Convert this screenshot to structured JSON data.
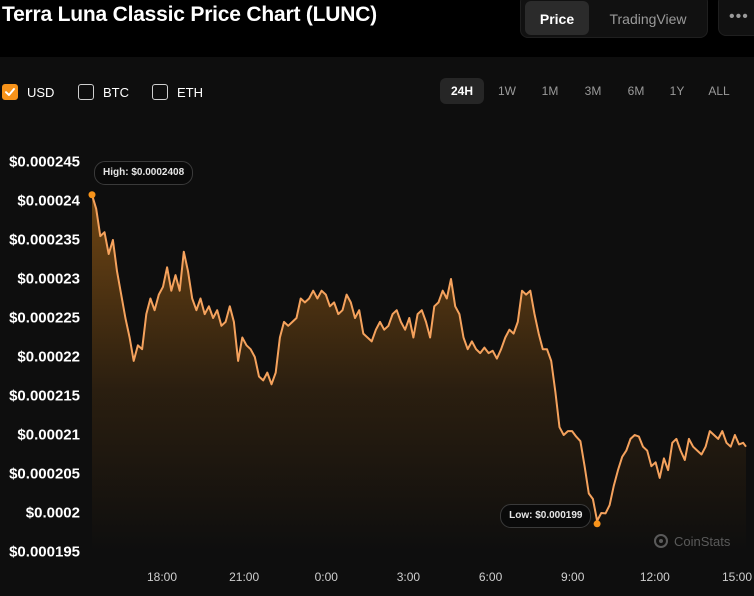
{
  "header": {
    "title": "Terra Luna Classic Price Chart (LUNC)",
    "view_tabs": [
      {
        "label": "Price",
        "active": true
      },
      {
        "label": "TradingView",
        "active": false
      }
    ],
    "more_label": "•••"
  },
  "currencies": [
    {
      "label": "USD",
      "checked": true
    },
    {
      "label": "BTC",
      "checked": false
    },
    {
      "label": "ETH",
      "checked": false
    }
  ],
  "ranges": [
    {
      "label": "24H",
      "active": true
    },
    {
      "label": "1W",
      "active": false
    },
    {
      "label": "1M",
      "active": false
    },
    {
      "label": "3M",
      "active": false
    },
    {
      "label": "6M",
      "active": false
    },
    {
      "label": "1Y",
      "active": false
    },
    {
      "label": "ALL",
      "active": false
    }
  ],
  "colors": {
    "accent": "#f7931a",
    "line": "#f5a25d"
  },
  "chart_data": {
    "type": "area",
    "title": "",
    "xlabel": "",
    "ylabel": "",
    "grid": false,
    "ylim": [
      0.0001945,
      0.000247
    ],
    "y_ticks": [
      {
        "value": 0.000245,
        "label": "$0.000245"
      },
      {
        "value": 0.00024,
        "label": "$0.00024"
      },
      {
        "value": 0.000235,
        "label": "$0.000235"
      },
      {
        "value": 0.00023,
        "label": "$0.00023"
      },
      {
        "value": 0.000225,
        "label": "$0.000225"
      },
      {
        "value": 0.00022,
        "label": "$0.00022"
      },
      {
        "value": 0.000215,
        "label": "$0.000215"
      },
      {
        "value": 0.00021,
        "label": "$0.00021"
      },
      {
        "value": 0.000205,
        "label": "$0.000205"
      },
      {
        "value": 0.0002,
        "label": "$0.0002"
      },
      {
        "value": 0.000195,
        "label": "$0.000195"
      }
    ],
    "xlim": [
      15.7,
      39.2
    ],
    "x_ticks": [
      {
        "value": 18,
        "label": "18:00"
      },
      {
        "value": 21,
        "label": "21:00"
      },
      {
        "value": 24,
        "label": "0:00"
      },
      {
        "value": 27,
        "label": "3:00"
      },
      {
        "value": 30,
        "label": "6:00"
      },
      {
        "value": 33,
        "label": "9:00"
      },
      {
        "value": 36,
        "label": "12:00"
      },
      {
        "value": 39,
        "label": "15:00"
      }
    ],
    "series": [
      {
        "values": [
          [
            15.7,
            0.0002408
          ],
          [
            15.85,
            0.000239
          ],
          [
            16.0,
            0.0002355
          ],
          [
            16.15,
            0.000236
          ],
          [
            16.3,
            0.0002332
          ],
          [
            16.45,
            0.000235
          ],
          [
            16.6,
            0.000231
          ],
          [
            16.75,
            0.000228
          ],
          [
            16.9,
            0.000225
          ],
          [
            17.05,
            0.0002225
          ],
          [
            17.2,
            0.0002195
          ],
          [
            17.35,
            0.0002215
          ],
          [
            17.5,
            0.000221
          ],
          [
            17.65,
            0.0002255
          ],
          [
            17.8,
            0.0002275
          ],
          [
            17.95,
            0.000226
          ],
          [
            18.1,
            0.000228
          ],
          [
            18.25,
            0.000229
          ],
          [
            18.4,
            0.0002315
          ],
          [
            18.55,
            0.0002285
          ],
          [
            18.7,
            0.0002305
          ],
          [
            18.85,
            0.0002285
          ],
          [
            19.0,
            0.0002335
          ],
          [
            19.15,
            0.000231
          ],
          [
            19.3,
            0.0002275
          ],
          [
            19.45,
            0.000226
          ],
          [
            19.6,
            0.0002275
          ],
          [
            19.75,
            0.0002255
          ],
          [
            19.9,
            0.0002265
          ],
          [
            20.05,
            0.000225
          ],
          [
            20.2,
            0.000226
          ],
          [
            20.35,
            0.000224
          ],
          [
            20.5,
            0.0002245
          ],
          [
            20.65,
            0.0002265
          ],
          [
            20.8,
            0.0002245
          ],
          [
            20.95,
            0.0002195
          ],
          [
            21.1,
            0.0002225
          ],
          [
            21.25,
            0.0002215
          ],
          [
            21.4,
            0.000221
          ],
          [
            21.55,
            0.00022
          ],
          [
            21.7,
            0.0002175
          ],
          [
            21.85,
            0.000217
          ],
          [
            22.0,
            0.000218
          ],
          [
            22.15,
            0.0002165
          ],
          [
            22.3,
            0.000218
          ],
          [
            22.45,
            0.0002225
          ],
          [
            22.6,
            0.0002245
          ],
          [
            22.75,
            0.000224
          ],
          [
            22.9,
            0.0002245
          ],
          [
            23.05,
            0.000225
          ],
          [
            23.2,
            0.0002275
          ],
          [
            23.35,
            0.000227
          ],
          [
            23.5,
            0.0002275
          ],
          [
            23.65,
            0.0002285
          ],
          [
            23.8,
            0.0002275
          ],
          [
            23.95,
            0.0002285
          ],
          [
            24.1,
            0.000228
          ],
          [
            24.25,
            0.0002265
          ],
          [
            24.4,
            0.000227
          ],
          [
            24.55,
            0.0002255
          ],
          [
            24.7,
            0.000226
          ],
          [
            24.85,
            0.000228
          ],
          [
            25.0,
            0.000227
          ],
          [
            25.15,
            0.000225
          ],
          [
            25.3,
            0.000226
          ],
          [
            25.45,
            0.000223
          ],
          [
            25.6,
            0.0002225
          ],
          [
            25.75,
            0.000222
          ],
          [
            25.9,
            0.0002235
          ],
          [
            26.05,
            0.0002245
          ],
          [
            26.2,
            0.0002235
          ],
          [
            26.35,
            0.000224
          ],
          [
            26.5,
            0.0002255
          ],
          [
            26.65,
            0.000226
          ],
          [
            26.8,
            0.0002245
          ],
          [
            26.95,
            0.0002235
          ],
          [
            27.1,
            0.000225
          ],
          [
            27.25,
            0.0002225
          ],
          [
            27.4,
            0.0002255
          ],
          [
            27.55,
            0.000226
          ],
          [
            27.7,
            0.0002245
          ],
          [
            27.85,
            0.0002225
          ],
          [
            28.0,
            0.0002265
          ],
          [
            28.15,
            0.000227
          ],
          [
            28.3,
            0.0002285
          ],
          [
            28.45,
            0.0002275
          ],
          [
            28.6,
            0.00023
          ],
          [
            28.75,
            0.0002265
          ],
          [
            28.9,
            0.0002255
          ],
          [
            29.05,
            0.0002225
          ],
          [
            29.2,
            0.000221
          ],
          [
            29.35,
            0.000222
          ],
          [
            29.5,
            0.000221
          ],
          [
            29.65,
            0.0002205
          ],
          [
            29.8,
            0.0002212
          ],
          [
            29.95,
            0.0002205
          ],
          [
            30.1,
            0.0002208
          ],
          [
            30.25,
            0.0002198
          ],
          [
            30.4,
            0.000221
          ],
          [
            30.55,
            0.0002225
          ],
          [
            30.7,
            0.0002235
          ],
          [
            30.85,
            0.000223
          ],
          [
            31.0,
            0.0002245
          ],
          [
            31.15,
            0.0002285
          ],
          [
            31.3,
            0.000228
          ],
          [
            31.45,
            0.0002285
          ],
          [
            31.6,
            0.0002255
          ],
          [
            31.75,
            0.000223
          ],
          [
            31.9,
            0.000221
          ],
          [
            32.05,
            0.000221
          ],
          [
            32.2,
            0.0002195
          ],
          [
            32.35,
            0.0002155
          ],
          [
            32.5,
            0.000211
          ],
          [
            32.65,
            0.00021
          ],
          [
            32.8,
            0.0002105
          ],
          [
            32.95,
            0.0002105
          ],
          [
            33.1,
            0.0002098
          ],
          [
            33.25,
            0.0002092
          ],
          [
            33.4,
            0.000206
          ],
          [
            33.55,
            0.0002025
          ],
          [
            33.7,
            0.0002018
          ],
          [
            33.85,
            0.000199
          ],
          [
            34.0,
            0.0002
          ],
          [
            34.15,
            0.00019995
          ],
          [
            34.3,
            0.000201
          ],
          [
            34.45,
            0.0002035
          ],
          [
            34.6,
            0.0002055
          ],
          [
            34.75,
            0.0002072
          ],
          [
            34.9,
            0.000208
          ],
          [
            35.05,
            0.0002095
          ],
          [
            35.2,
            0.00021
          ],
          [
            35.35,
            0.0002098
          ],
          [
            35.5,
            0.0002085
          ],
          [
            35.65,
            0.000208
          ],
          [
            35.8,
            0.000206
          ],
          [
            35.95,
            0.0002065
          ],
          [
            36.1,
            0.0002045
          ],
          [
            36.25,
            0.000207
          ],
          [
            36.4,
            0.0002055
          ],
          [
            36.55,
            0.000209
          ],
          [
            36.7,
            0.0002095
          ],
          [
            36.85,
            0.000208
          ],
          [
            37.0,
            0.0002068
          ],
          [
            37.15,
            0.0002095
          ],
          [
            37.3,
            0.0002085
          ],
          [
            37.45,
            0.000208
          ],
          [
            37.6,
            0.0002075
          ],
          [
            37.75,
            0.0002085
          ],
          [
            37.9,
            0.0002105
          ],
          [
            38.05,
            0.00021
          ],
          [
            38.2,
            0.0002095
          ],
          [
            38.35,
            0.0002105
          ],
          [
            38.5,
            0.000209
          ],
          [
            38.65,
            0.0002085
          ],
          [
            38.8,
            0.00021
          ],
          [
            38.95,
            0.0002088
          ],
          [
            39.1,
            0.000209
          ],
          [
            39.2,
            0.0002085
          ]
        ]
      }
    ],
    "annotations": [
      {
        "label": "High: $0.0002408",
        "x": 15.7,
        "y": 0.0002408,
        "kind": "high"
      },
      {
        "label": "Low: $0.000199",
        "x": 33.85,
        "y": 0.000199,
        "kind": "low"
      }
    ],
    "watermark": "CoinStats"
  }
}
